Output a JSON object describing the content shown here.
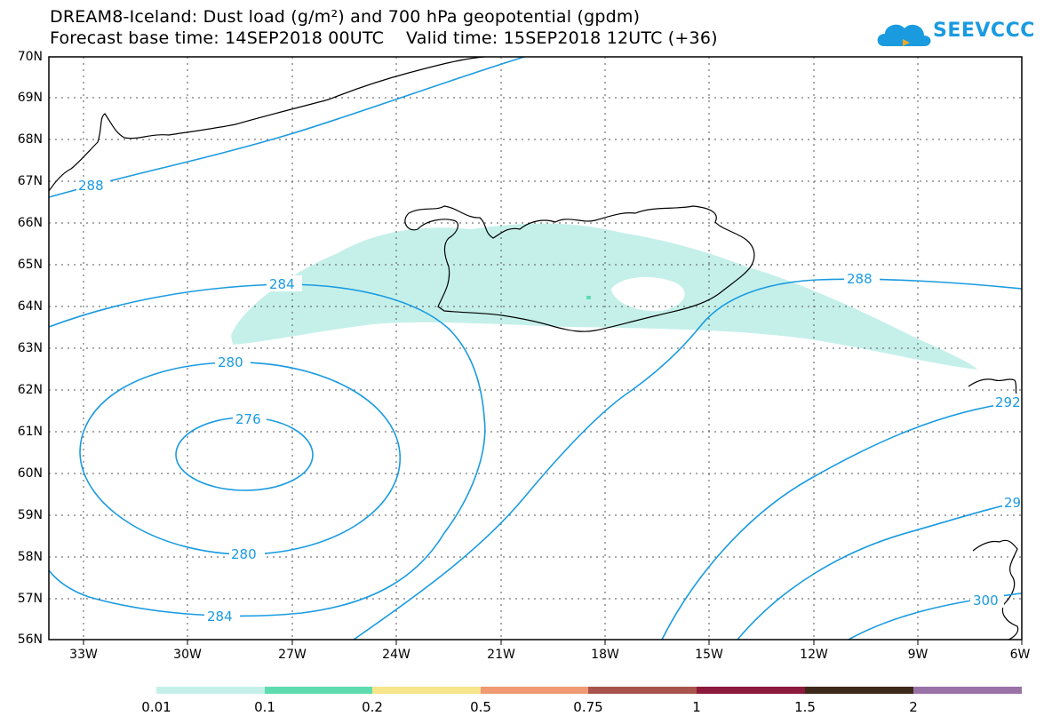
{
  "title": {
    "line1": "DREAM8-Iceland: Dust load (g/m²) and 700 hPa geopotential (gpdm)",
    "line2": "Forecast base time: 14SEP2018 00UTC    Valid time: 15SEP2018 12UTC (+36)"
  },
  "logo": {
    "text": "SEEVCCC",
    "icon": "cloud-icon",
    "color": "#1a9be0"
  },
  "map": {
    "lat_labels": [
      "70N",
      "69N",
      "68N",
      "67N",
      "66N",
      "65N",
      "64N",
      "63N",
      "62N",
      "61N",
      "60N",
      "59N",
      "58N",
      "57N",
      "56N"
    ],
    "lon_labels": [
      "33W",
      "30W",
      "27W",
      "24W",
      "21W",
      "18W",
      "15W",
      "12W",
      "9W",
      "6W"
    ],
    "contour_color": "#1a9be0",
    "contour_labels": [
      "288",
      "284",
      "280",
      "276",
      "280",
      "284",
      "288",
      "292",
      "29",
      "300"
    ],
    "dust_color": "#c5f0ea"
  },
  "colorbar": {
    "colors": [
      "#c5f0ea",
      "#5edcb0",
      "#f6e58a",
      "#ef9a72",
      "#a8544d",
      "#8b1a3c",
      "#3e2a1a",
      "#9a72a8"
    ],
    "labels": [
      "0.01",
      "0.1",
      "0.2",
      "0.5",
      "0.75",
      "1",
      "1.5",
      "2"
    ]
  }
}
